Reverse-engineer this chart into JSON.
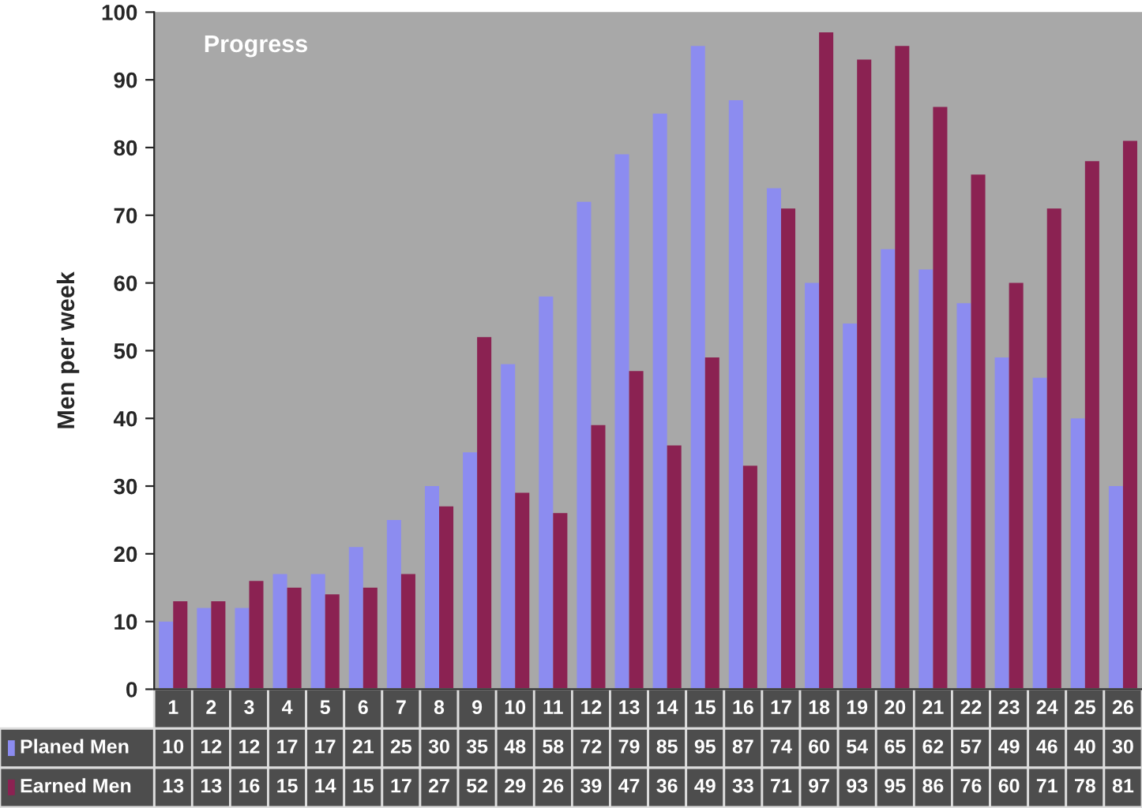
{
  "chart_data": {
    "type": "bar",
    "title": "Progress",
    "ylabel": "Men per week",
    "categories": [
      "1",
      "2",
      "3",
      "4",
      "5",
      "6",
      "7",
      "8",
      "9",
      "10",
      "11",
      "12",
      "13",
      "14",
      "15",
      "16",
      "17",
      "18",
      "19",
      "20",
      "21",
      "22",
      "23",
      "24",
      "25",
      "26"
    ],
    "series": [
      {
        "name": "Planed Men",
        "color": "#8c8cf0",
        "values": [
          10,
          12,
          12,
          17,
          17,
          21,
          25,
          30,
          35,
          48,
          58,
          72,
          79,
          85,
          95,
          87,
          74,
          60,
          54,
          65,
          62,
          57,
          49,
          46,
          40,
          30
        ]
      },
      {
        "name": "Earned Men",
        "color": "#8b2252",
        "values": [
          13,
          13,
          16,
          15,
          14,
          15,
          17,
          27,
          52,
          29,
          26,
          39,
          47,
          36,
          49,
          33,
          71,
          97,
          93,
          95,
          86,
          76,
          60,
          71,
          78,
          81
        ]
      }
    ],
    "ylim": [
      0,
      100
    ],
    "yticks": [
      0,
      10,
      20,
      30,
      40,
      50,
      60,
      70,
      80,
      90,
      100
    ],
    "grid": false,
    "data_labels": true,
    "legend": "bottom left"
  }
}
